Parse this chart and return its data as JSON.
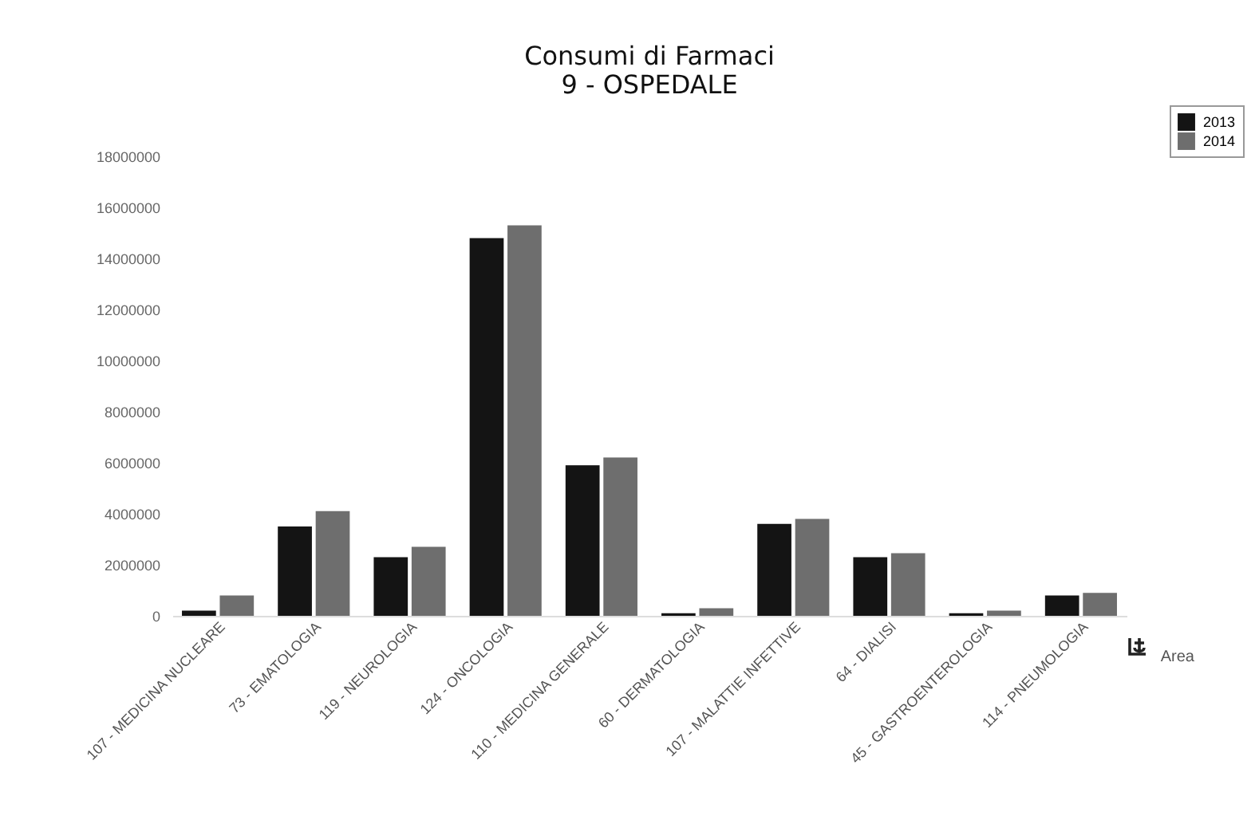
{
  "chart_data": {
    "type": "bar",
    "title": "Consumi di Farmaci",
    "subtitle": "9 - OSPEDALE",
    "xlabel": "Area",
    "categories": [
      "107 - MEDICINA NUCLEARE",
      "73 - EMATOLOGIA",
      "119 - NEUROLOGIA",
      "124 - ONCOLOGIA",
      "110 - MEDICINA GENERALE",
      "60 - DERMATOLOGIA",
      "107 - MALATTIE INFETTIVE",
      "64 - DIALISI",
      "45 - GASTROENTEROLOGIA",
      "114 - PNEUMOLOGIA"
    ],
    "series": [
      {
        "name": "2013",
        "color": "#141414",
        "values": [
          200000,
          3500000,
          2300000,
          14800000,
          5900000,
          100000,
          3600000,
          2300000,
          100000,
          800000
        ]
      },
      {
        "name": "2014",
        "color": "#6e6e6e",
        "values": [
          800000,
          4100000,
          2700000,
          15300000,
          6200000,
          300000,
          3800000,
          2450000,
          200000,
          900000
        ]
      }
    ],
    "ylim": [
      0,
      18000000
    ],
    "yticks": [
      0,
      2000000,
      4000000,
      6000000,
      8000000,
      10000000,
      12000000,
      14000000,
      16000000,
      18000000
    ],
    "grid": false,
    "legend": "top right"
  }
}
